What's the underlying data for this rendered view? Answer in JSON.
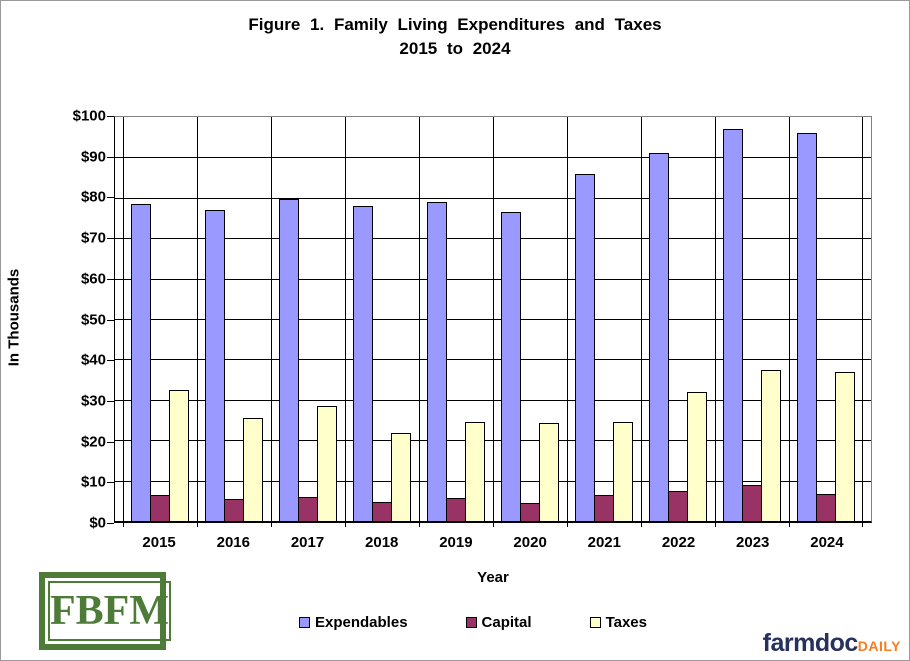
{
  "title": {
    "line1": "Figure 1. Family Living Expenditures and Taxes",
    "line2": "2015 to 2024"
  },
  "y_axis": {
    "label": "In Thousands",
    "ticks": [
      "$100",
      "$90",
      "$80",
      "$70",
      "$60",
      "$50",
      "$40",
      "$30",
      "$20",
      "$10",
      "$0"
    ]
  },
  "x_axis": {
    "label": "Year"
  },
  "logos": {
    "fbfm": "FBFM",
    "farmdoc": "farmdoc",
    "daily": "DAILY"
  },
  "colors": {
    "expendables": "#9999FF",
    "capital": "#993366",
    "taxes": "#FFFFCC",
    "gridline": "#000000",
    "plot_border_gray": "#808080",
    "fbfm_green": "#4E7C38",
    "farmdoc_navy": "#26315E",
    "farmdoc_orange": "#F57E20"
  },
  "chart_data": {
    "type": "bar",
    "title": "Figure 1. Family Living Expenditures and Taxes 2015 to 2024",
    "xlabel": "Year",
    "ylabel": "In Thousands",
    "ylim": [
      0,
      100
    ],
    "ytick_step": 10,
    "grid": true,
    "legend_position": "bottom",
    "categories": [
      "2015",
      "2016",
      "2017",
      "2018",
      "2019",
      "2020",
      "2021",
      "2022",
      "2023",
      "2024"
    ],
    "series": [
      {
        "name": "Expendables",
        "color": "#9999FF",
        "values": [
          78.5,
          77,
          79.8,
          78,
          79,
          76.5,
          86,
          91,
          97,
          96
        ]
      },
      {
        "name": "Capital",
        "color": "#993366",
        "values": [
          6.5,
          5.5,
          6,
          4.8,
          5.7,
          4.5,
          6.5,
          7.5,
          8.8,
          6.6
        ]
      },
      {
        "name": "Taxes",
        "color": "#FFFFCC",
        "values": [
          32.5,
          25.5,
          28.5,
          21.8,
          24.6,
          24.2,
          24.5,
          32,
          37.5,
          37
        ]
      }
    ]
  }
}
